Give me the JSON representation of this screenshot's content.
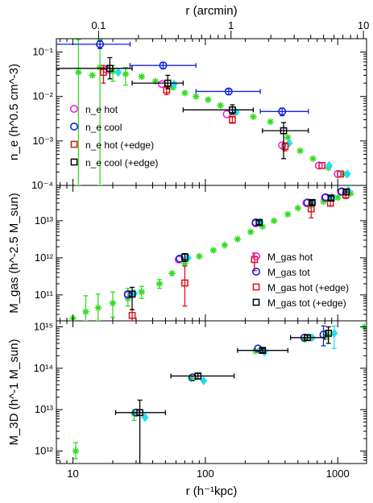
{
  "chart_data": {
    "type": "scatter",
    "x_bottom_label": "r (h⁻¹kpc)",
    "x_top_label": "r (arcmin)",
    "x_bottom_ticks": [
      "10",
      "100",
      "1000"
    ],
    "x_top_ticks": [
      "0.1",
      "1",
      "10"
    ],
    "x_range_kpc": [
      7.5,
      1650
    ],
    "arcmin_per_kpc": 0.0064,
    "panels": [
      {
        "id": "ne",
        "ylabel": "n_e (h^0.5 cm^-3)",
        "ylim": [
          0.0001,
          0.2
        ],
        "yticks": [
          "10⁻¹",
          "10⁻²",
          "10⁻³",
          "10⁻⁴"
        ],
        "legend": [
          "n_e hot",
          "n_e cool",
          "n_e hot (+edge)",
          "n_e cool (+edge)"
        ],
        "series": [
          {
            "name": "green",
            "color": "#33dd22",
            "marker": "star",
            "points": [
              {
                "x": 11,
                "y": 0.035,
                "ylo": 0.0001,
                "yhi": 0.19
              },
              {
                "x": 14,
                "y": 0.03
              },
              {
                "x": 16,
                "y": 0.045,
                "ylo": 0.0001,
                "yhi": 0.19
              },
              {
                "x": 20,
                "y": 0.037,
                "ylo": 0.022,
                "yhi": 0.05
              },
              {
                "x": 25,
                "y": 0.032,
                "ylo": 0.018,
                "yhi": 0.045
              },
              {
                "x": 33,
                "y": 0.028
              },
              {
                "x": 42,
                "y": 0.022
              },
              {
                "x": 57,
                "y": 0.016
              },
              {
                "x": 70,
                "y": 0.012
              },
              {
                "x": 85,
                "y": 0.01
              },
              {
                "x": 105,
                "y": 0.0085
              },
              {
                "x": 130,
                "y": 0.0063
              },
              {
                "x": 170,
                "y": 0.0045
              },
              {
                "x": 230,
                "y": 0.0035
              },
              {
                "x": 310,
                "y": 0.0027
              },
              {
                "x": 420,
                "y": 0.0012
              },
              {
                "x": 520,
                "y": 0.0006
              },
              {
                "x": 650,
                "y": 0.0004
              },
              {
                "x": 850,
                "y": 0.00025
              },
              {
                "x": 1100,
                "y": 0.00018
              }
            ]
          },
          {
            "name": "cyan",
            "color": "#22ddee",
            "marker": "diamond",
            "points": [
              {
                "x": 22,
                "y": 0.035
              },
              {
                "x": 58,
                "y": 0.019
              },
              {
                "x": 170,
                "y": 0.0045
              },
              {
                "x": 430,
                "y": 0.0009
              },
              {
                "x": 860,
                "y": 0.00028
              },
              {
                "x": 1180,
                "y": 0.00018
              }
            ]
          },
          {
            "name": "n_e hot",
            "color": "#ee22ee",
            "marker": "circle",
            "points": [
              {
                "x": 18,
                "y": 0.04
              },
              {
                "x": 47,
                "y": 0.019
              },
              {
                "x": 145,
                "y": 0.004
              },
              {
                "x": 380,
                "y": 0.0008
              },
              {
                "x": 720,
                "y": 0.00028
              },
              {
                "x": 1000,
                "y": 0.00018
              }
            ]
          },
          {
            "name": "n_e cool",
            "color": "#1122dd",
            "marker": "circle",
            "points": [
              {
                "x": 16,
                "y": 0.15,
                "xlo": 7.5,
                "xhi": 27,
                "ylo": 0.12,
                "yhi": 0.18
              },
              {
                "x": 48,
                "y": 0.05,
                "xlo": 27,
                "xhi": 85,
                "ylo": 0.042,
                "yhi": 0.058
              },
              {
                "x": 150,
                "y": 0.013,
                "xlo": 85,
                "xhi": 260,
                "ylo": 0.011,
                "yhi": 0.015
              },
              {
                "x": 380,
                "y": 0.0046,
                "xlo": 260,
                "xhi": 600,
                "ylo": 0.0037,
                "yhi": 0.0055
              }
            ]
          },
          {
            "name": "n_e hot (+edge)",
            "color": "#dd1111",
            "marker": "square",
            "points": [
              {
                "x": 17,
                "y": 0.035,
                "ylo": 0.02,
                "yhi": 0.05
              },
              {
                "x": 51,
                "y": 0.014,
                "ylo": 0.011,
                "yhi": 0.017
              },
              {
                "x": 160,
                "y": 0.003,
                "ylo": 0.0025,
                "yhi": 0.0036
              },
              {
                "x": 400,
                "y": 0.00075,
                "ylo": 0.0006,
                "yhi": 0.0009
              },
              {
                "x": 760,
                "y": 0.00028
              },
              {
                "x": 1050,
                "y": 0.00018
              }
            ]
          },
          {
            "name": "n_e cool (+edge)",
            "color": "#000000",
            "marker": "square",
            "points": [
              {
                "x": 19,
                "y": 0.043,
                "xlo": 7.5,
                "xhi": 28,
                "ylo": 0.025,
                "yhi": 0.075
              },
              {
                "x": 52,
                "y": 0.02,
                "xlo": 28,
                "xhi": 68,
                "ylo": 0.015,
                "yhi": 0.03
              },
              {
                "x": 160,
                "y": 0.005,
                "xlo": 68,
                "xhi": 230,
                "ylo": 0.004,
                "yhi": 0.0065
              },
              {
                "x": 390,
                "y": 0.0017,
                "xlo": 270,
                "xhi": 600,
                "ylo": 0.0004,
                "yhi": 0.0026
              }
            ]
          }
        ]
      },
      {
        "id": "mgas",
        "ylabel": "M_gas (h^-2.5 M_sun)",
        "ylim": [
          20000000000.0,
          90000000000000.0
        ],
        "yticks": [
          "10¹³",
          "10¹²",
          "10¹¹"
        ],
        "legend": [
          "M_gas hot",
          "M_gas tot",
          "M_gas hot (+edge)",
          "M_gas tot (+edge)"
        ],
        "series": [
          {
            "name": "green",
            "color": "#33dd22",
            "marker": "star",
            "points": [
              {
                "x": 10,
                "y": 23000000000.0
              },
              {
                "x": 12.5,
                "y": 35000000000.0,
                "ylo": 20000000000.0,
                "yhi": 95000000000.0
              },
              {
                "x": 15.5,
                "y": 45000000000.0,
                "ylo": 20000000000.0,
                "yhi": 105000000000.0
              },
              {
                "x": 20,
                "y": 60000000000.0,
                "ylo": 25000000000.0,
                "yhi": 120000000000.0
              },
              {
                "x": 26,
                "y": 80000000000.0,
                "ylo": 50000000000.0,
                "yhi": 150000000000.0
              },
              {
                "x": 33,
                "y": 120000000000.0,
                "ylo": 80000000000.0,
                "yhi": 170000000000.0
              },
              {
                "x": 45,
                "y": 200000000000.0,
                "ylo": 150000000000.0,
                "yhi": 260000000000.0
              },
              {
                "x": 56,
                "y": 380000000000.0
              },
              {
                "x": 70,
                "y": 700000000000.0
              },
              {
                "x": 90,
                "y": 1100000000000.0
              },
              {
                "x": 115,
                "y": 1600000000000.0
              },
              {
                "x": 140,
                "y": 2200000000000.0
              },
              {
                "x": 175,
                "y": 3200000000000.0
              },
              {
                "x": 220,
                "y": 5000000000000.0
              },
              {
                "x": 270,
                "y": 7000000000000.0
              },
              {
                "x": 330,
                "y": 10000000000000.0
              },
              {
                "x": 420,
                "y": 15000000000000.0
              },
              {
                "x": 500,
                "y": 22000000000000.0
              },
              {
                "x": 620,
                "y": 26000000000000.0
              },
              {
                "x": 780,
                "y": 33000000000000.0
              },
              {
                "x": 1000,
                "y": 42000000000000.0
              },
              {
                "x": 1250,
                "y": 55000000000000.0
              }
            ]
          },
          {
            "name": "cyan",
            "color": "#22ddee",
            "marker": "diamond",
            "points": [
              {
                "x": 29,
                "y": 110000000000.0
              },
              {
                "x": 74,
                "y": 1000000000000.0
              },
              {
                "x": 260,
                "y": 9000000000000.0
              },
              {
                "x": 650,
                "y": 30000000000000.0
              },
              {
                "x": 900,
                "y": 43000000000000.0
              },
              {
                "x": 1200,
                "y": 65000000000000.0
              }
            ]
          },
          {
            "name": "M_gas hot",
            "color": "#ee22ee",
            "marker": "circle",
            "points": [
              {
                "x": 26,
                "y": 100000000000.0
              },
              {
                "x": 63,
                "y": 900000000000.0
              },
              {
                "x": 240,
                "y": 8500000000000.0
              },
              {
                "x": 580,
                "y": 30000000000000.0
              },
              {
                "x": 800,
                "y": 42000000000000.0
              },
              {
                "x": 1060,
                "y": 60000000000000.0
              }
            ]
          },
          {
            "name": "M_gas tot",
            "color": "#1122dd",
            "marker": "circle",
            "points": [
              {
                "x": 26,
                "y": 105000000000.0
              },
              {
                "x": 64,
                "y": 950000000000.0
              },
              {
                "x": 240,
                "y": 9000000000000.0
              },
              {
                "x": 590,
                "y": 31000000000000.0
              },
              {
                "x": 810,
                "y": 43000000000000.0
              },
              {
                "x": 1070,
                "y": 62000000000000.0
              }
            ]
          },
          {
            "name": "M_gas hot (+edge)",
            "color": "#dd1111",
            "marker": "square",
            "points": [
              {
                "x": 28,
                "y": 28000000000.0,
                "ylo": 20000000000.0,
                "yhi": 40000000000.0
              },
              {
                "x": 70,
                "y": 210000000000.0,
                "ylo": 50000000000.0,
                "yhi": 600000000000.0
              },
              {
                "x": 235,
                "y": 900000000000.0,
                "ylo": 450000000000.0,
                "yhi": 1350000000000.0
              },
              {
                "x": 630,
                "y": 21000000000000.0,
                "ylo": 12000000000000.0,
                "yhi": 30000000000000.0
              },
              {
                "x": 880,
                "y": 30000000000000.0,
                "ylo": 25000000000000.0,
                "yhi": 35000000000000.0
              },
              {
                "x": 1150,
                "y": 50000000000000.0,
                "ylo": 40000000000000.0,
                "yhi": 60000000000000.0
              }
            ]
          },
          {
            "name": "M_gas tot (+edge)",
            "color": "#000000",
            "marker": "square",
            "points": [
              {
                "x": 28,
                "y": 105000000000.0,
                "ylo": 40000000000.0,
                "yhi": 160000000000.0
              },
              {
                "x": 70,
                "y": 1050000000000.0,
                "ylo": 800000000000.0,
                "yhi": 1300000000000.0
              },
              {
                "x": 255,
                "y": 9000000000000.0,
                "ylo": 8000000000000.0,
                "yhi": 10000000000000.0
              },
              {
                "x": 640,
                "y": 31000000000000.0,
                "ylo": 27000000000000.0,
                "yhi": 35000000000000.0
              },
              {
                "x": 890,
                "y": 41000000000000.0,
                "ylo": 36000000000000.0,
                "yhi": 46000000000000.0
              },
              {
                "x": 1160,
                "y": 60000000000000.0,
                "ylo": 50000000000000.0,
                "yhi": 70000000000000.0
              }
            ]
          }
        ]
      },
      {
        "id": "m3d",
        "ylabel": "M_3D (h^-1 M_sun)",
        "ylim": [
          500000000000.0,
          1400000000000000.0
        ],
        "yticks": [
          "10¹⁵",
          "10¹⁴",
          "10¹³",
          "10¹²"
        ],
        "series": [
          {
            "name": "green",
            "color": "#33dd22",
            "marker": "star",
            "points": [
              {
                "x": 10.5,
                "y": 1000000000000.0,
                "ylo": 650000000000.0,
                "yhi": 1600000000000.0
              },
              {
                "x": 29,
                "y": 8000000000000.0,
                "ylo": 5500000000000.0,
                "yhi": 10000000000000.0
              },
              {
                "x": 78,
                "y": 57000000000000.0
              },
              {
                "x": 240,
                "y": 260000000000000.0
              },
              {
                "x": 560,
                "y": 500000000000000.0
              },
              {
                "x": 830,
                "y": 650000000000000.0,
                "ylo": 500000000000000.0,
                "yhi": 800000000000000.0
              },
              {
                "x": 1600,
                "y": 1000000000000000.0
              }
            ]
          },
          {
            "name": "cyan",
            "color": "#22ddee",
            "marker": "diamond",
            "points": [
              {
                "x": 35,
                "y": 6500000000000.0
              },
              {
                "x": 97,
                "y": 50000000000000.0
              },
              {
                "x": 280,
                "y": 250000000000000.0
              },
              {
                "x": 640,
                "y": 550000000000000.0
              },
              {
                "x": 940,
                "y": 700000000000000.0,
                "ylo": 300000000000000.0,
                "yhi": 1050000000000000.0
              }
            ]
          },
          {
            "name": "blue",
            "color": "#1122dd",
            "marker": "circle",
            "points": [
              {
                "x": 30,
                "y": 8500000000000.0
              },
              {
                "x": 80,
                "y": 60000000000000.0
              },
              {
                "x": 250,
                "y": 300000000000000.0
              },
              {
                "x": 560,
                "y": 550000000000000.0
              },
              {
                "x": 780,
                "y": 650000000000000.0,
                "ylo": 350000000000000.0,
                "yhi": 1050000000000000.0
              }
            ]
          },
          {
            "name": "black",
            "color": "#000000",
            "marker": "square",
            "points": [
              {
                "x": 32,
                "y": 8500000000000.0,
                "xlo": 21,
                "xhi": 50,
                "ylo": 500000000000.0,
                "yhi": 17000000000000.0
              },
              {
                "x": 88,
                "y": 65000000000000.0,
                "xlo": 55,
                "xhi": 165,
                "ylo": 55000000000000.0,
                "yhi": 75000000000000.0
              },
              {
                "x": 270,
                "y": 270000000000000.0,
                "xlo": 175,
                "xhi": 420,
                "ylo": 240000000000000.0,
                "yhi": 300000000000000.0
              },
              {
                "x": 590,
                "y": 550000000000000.0,
                "xlo": 440,
                "xhi": 800,
                "ylo": 470000000000000.0,
                "yhi": 630000000000000.0
              },
              {
                "x": 850,
                "y": 700000000000000.0,
                "ylo": 400000000000000.0,
                "yhi": 1000000000000000.0
              }
            ]
          }
        ]
      }
    ]
  }
}
